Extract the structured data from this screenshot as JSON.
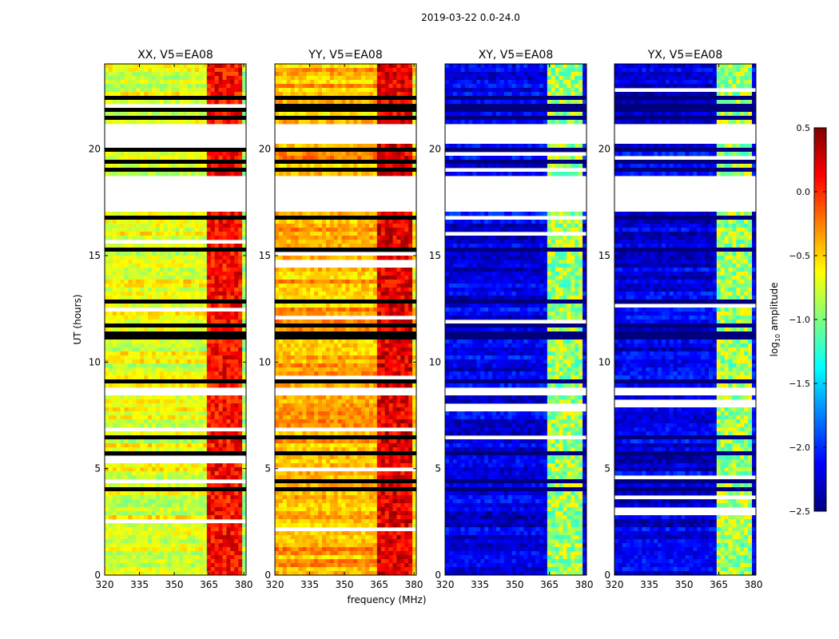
{
  "figure": {
    "suptitle": "2019-03-22 0.0-24.0",
    "xlabel": "frequency (MHz)",
    "ylabel": "UT (hours)"
  },
  "colorbar": {
    "label_prefix": "log",
    "label_sub": "10",
    "label_suffix": " amplitude",
    "range": [
      -2.5,
      0.5
    ],
    "ticks": [
      0.5,
      0.0,
      -0.5,
      -1.0,
      -1.5,
      -2.0,
      -2.5
    ],
    "tick_labels": [
      "0.5",
      "0.0",
      "−0.5",
      "−1.0",
      "−1.5",
      "−2.0",
      "−2.5"
    ],
    "colormap": "jet",
    "colormap_stops": [
      "#00007f",
      "#0000ff",
      "#007fff",
      "#00ffff",
      "#7fff7f",
      "#ffff00",
      "#ff7f00",
      "#ff0000",
      "#7f0000"
    ]
  },
  "chart_data": [
    {
      "type": "heatmap",
      "title": "XX, V5=EA08",
      "xlim": [
        320,
        381
      ],
      "ylim": [
        0,
        24
      ],
      "xticks": [
        320,
        335,
        350,
        365,
        380
      ],
      "yticks": [
        0,
        5,
        10,
        15,
        20
      ],
      "ytick_labels": [
        "0",
        "5",
        "10",
        "15",
        "20"
      ],
      "base_value": -0.7,
      "rfi_freq_range": [
        363.5,
        378.5
      ],
      "rfi_value": 0.1,
      "gaps_ut": [
        [
          17.0,
          18.7
        ],
        [
          20.2,
          21.2
        ],
        [
          8.5,
          8.8
        ]
      ]
    },
    {
      "type": "heatmap",
      "title": "YY, V5=EA08",
      "xlim": [
        320,
        381
      ],
      "ylim": [
        0,
        24
      ],
      "xticks": [
        320,
        335,
        350,
        365,
        380
      ],
      "yticks": [
        0,
        5,
        10,
        15,
        20
      ],
      "ytick_labels": [
        "0",
        "5",
        "10",
        "15",
        "20"
      ],
      "base_value": -0.4,
      "rfi_freq_range": [
        363.5,
        378.5
      ],
      "rfi_value": 0.2,
      "gaps_ut": [
        [
          17.0,
          18.7
        ],
        [
          20.2,
          21.2
        ],
        [
          8.5,
          8.8
        ]
      ]
    },
    {
      "type": "heatmap",
      "title": "XY, V5=EA08",
      "xlim": [
        320,
        381
      ],
      "ylim": [
        0,
        24
      ],
      "xticks": [
        320,
        335,
        350,
        365,
        380
      ],
      "yticks": [
        0,
        5,
        10,
        15,
        20
      ],
      "ytick_labels": [
        "0",
        "5",
        "10",
        "15",
        "20"
      ],
      "base_value": -2.2,
      "rfi_freq_range": [
        363.5,
        378.5
      ],
      "rfi_value": -1.0,
      "gaps_ut": [
        [
          17.0,
          18.7
        ],
        [
          20.2,
          21.2
        ],
        [
          8.5,
          8.8
        ]
      ]
    },
    {
      "type": "heatmap",
      "title": "YX, V5=EA08",
      "xlim": [
        320,
        381
      ],
      "ylim": [
        0,
        24
      ],
      "xticks": [
        320,
        335,
        350,
        365,
        380
      ],
      "yticks": [
        0,
        5,
        10,
        15,
        20
      ],
      "ytick_labels": [
        "0",
        "5",
        "10",
        "15",
        "20"
      ],
      "base_value": -2.2,
      "rfi_freq_range": [
        363.5,
        378.5
      ],
      "rfi_value": -1.0,
      "gaps_ut": [
        [
          17.0,
          18.7
        ],
        [
          20.2,
          21.2
        ],
        [
          8.5,
          8.8
        ]
      ]
    }
  ]
}
